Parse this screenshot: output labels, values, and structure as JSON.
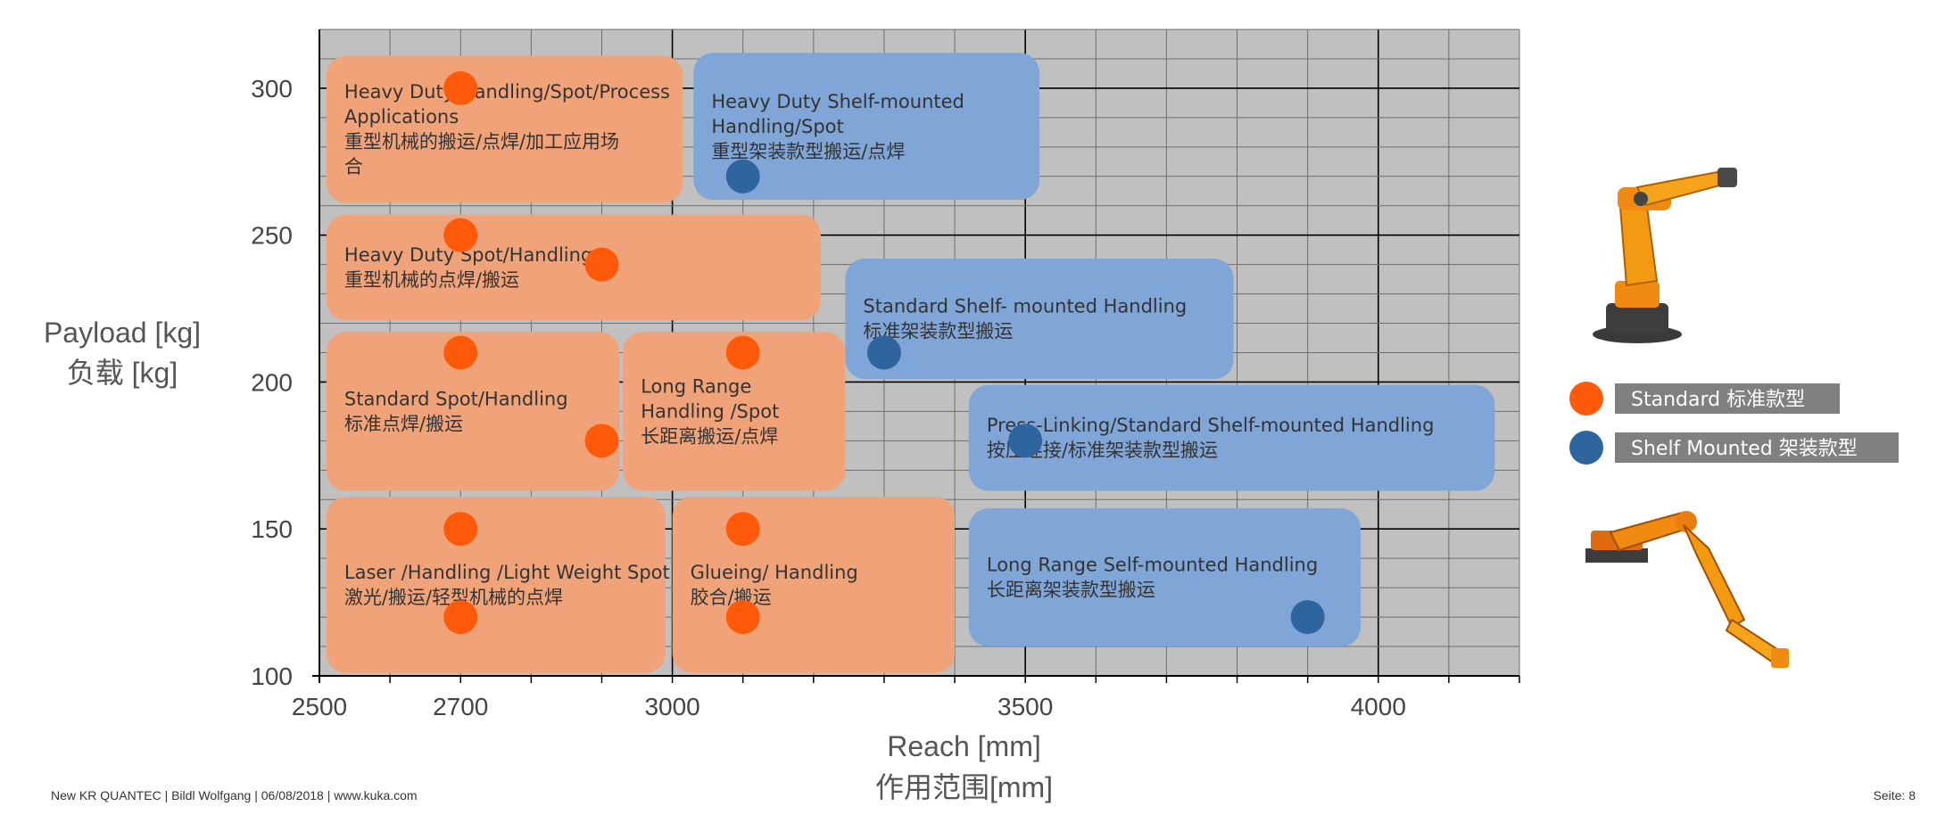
{
  "chart_data": {
    "type": "scatter",
    "xlabel": [
      "Reach [mm]",
      "作用范围[mm]"
    ],
    "ylabel": [
      "Payload [kg]",
      "负载 [kg]"
    ],
    "xlim": [
      2500,
      4200
    ],
    "ylim": [
      100,
      320
    ],
    "x_ticks": [
      2500,
      2700,
      3000,
      3500,
      4000
    ],
    "y_ticks": [
      100,
      150,
      200,
      250,
      300
    ],
    "grid": true,
    "legend_position": "right",
    "regions": [
      {
        "group": "Standard",
        "label": [
          "Heavy Duty Handling/Spot/Process",
          "Applications",
          "重型机械的搬运/点焊/加工应用场",
          "合"
        ],
        "x": [
          2510,
          3015
        ],
        "y": [
          261,
          311
        ]
      },
      {
        "group": "Standard",
        "label": [
          "Heavy Duty Spot/Handling",
          "重型机械的点焊/搬运"
        ],
        "x": [
          2510,
          3210
        ],
        "y": [
          221,
          257
        ]
      },
      {
        "group": "Standard",
        "label": [
          "Standard Spot/Handling",
          "标准点焊/搬运"
        ],
        "x": [
          2510,
          2925
        ],
        "y": [
          163,
          217
        ]
      },
      {
        "group": "Standard",
        "label": [
          "Long Range",
          "Handling /Spot",
          "长距离搬运/点焊"
        ],
        "x": [
          2930,
          3245
        ],
        "y": [
          163,
          217
        ]
      },
      {
        "group": "Standard",
        "label": [
          "Laser /Handling /Light Weight Spot",
          "激光/搬运/轻型机械的点焊"
        ],
        "x": [
          2510,
          2990
        ],
        "y": [
          101,
          161
        ]
      },
      {
        "group": "Standard",
        "label": [
          "Glueing/ Handling",
          "胶合/搬运"
        ],
        "x": [
          3000,
          3400
        ],
        "y": [
          101,
          161
        ]
      },
      {
        "group": "Shelf Mounted",
        "label": [
          "Heavy  Duty Shelf-mounted",
          "Handling/Spot",
          "重型架装款型搬运/点焊"
        ],
        "x": [
          3030,
          3520
        ],
        "y": [
          262,
          312
        ]
      },
      {
        "group": "Shelf Mounted",
        "label": [
          "Standard Shelf- mounted Handling",
          "标准架装款型搬运"
        ],
        "x": [
          3245,
          3795
        ],
        "y": [
          201,
          242
        ]
      },
      {
        "group": "Shelf Mounted",
        "label": [
          "Press-Linking/Standard Shelf-mounted Handling",
          "按压连接/标准架装款型搬运"
        ],
        "x": [
          3420,
          4165
        ],
        "y": [
          163,
          199
        ]
      },
      {
        "group": "Shelf Mounted",
        "label": [
          "Long Range Self-mounted Handling",
          "长距离架装款型搬运"
        ],
        "x": [
          3420,
          3975
        ],
        "y": [
          110,
          157
        ]
      }
    ],
    "series": [
      {
        "name": "Standard 标准款型",
        "color": "#FF5A0A",
        "points": [
          [
            2700,
            300
          ],
          [
            2700,
            250
          ],
          [
            2900,
            240
          ],
          [
            2700,
            210
          ],
          [
            3100,
            210
          ],
          [
            2900,
            180
          ],
          [
            2700,
            150
          ],
          [
            3100,
            150
          ],
          [
            2700,
            120
          ],
          [
            3100,
            120
          ]
        ]
      },
      {
        "name": "Shelf Mounted 架装款型",
        "color": "#2F659F",
        "points": [
          [
            3100,
            270
          ],
          [
            3300,
            210
          ],
          [
            3500,
            180
          ],
          [
            3900,
            120
          ]
        ]
      }
    ]
  },
  "legend": [
    {
      "color": "#FF5A0A",
      "label": "Standard  标准款型"
    },
    {
      "color": "#2F659F",
      "label": "Shelf Mounted  架装款型"
    }
  ],
  "colors": {
    "standard_region": "#F0A378",
    "shelf_region": "#7FA6D6",
    "plot_bg": "#C0C0C0",
    "legend_bg": "#808080"
  },
  "footer": {
    "left": "New KR QUANTEC | Bildl Wolfgang | 06/08/2018 | www.kuka.com",
    "right": "Seite: 8"
  },
  "images": [
    "orange-standard-robot",
    "orange-shelf-mounted-robot"
  ]
}
